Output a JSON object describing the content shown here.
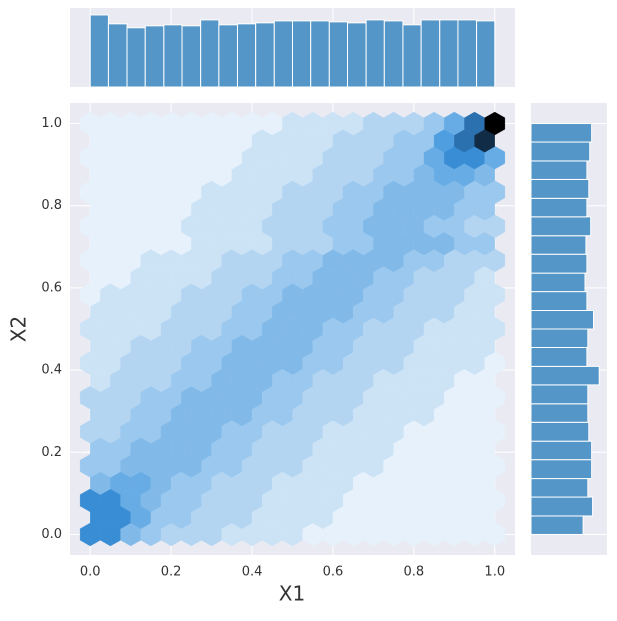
{
  "chart_data": [
    {
      "type": "hexbin",
      "x_label": "X1",
      "y_label": "X2",
      "xlim": [
        -0.05,
        1.05
      ],
      "ylim": [
        -0.05,
        1.05
      ],
      "xticks": [
        {
          "value": 0,
          "label": "0.0"
        },
        {
          "value": 0.2,
          "label": "0.2"
        },
        {
          "value": 0.4,
          "label": "0.4"
        },
        {
          "value": 0.6,
          "label": "0.6"
        },
        {
          "value": 0.8,
          "label": "0.8"
        },
        {
          "value": 1,
          "label": "1.0"
        }
      ],
      "yticks": [
        {
          "value": 0,
          "label": "0.0"
        },
        {
          "value": 0.2,
          "label": "0.2"
        },
        {
          "value": 0.4,
          "label": "0.4"
        },
        {
          "value": 0.6,
          "label": "0.6"
        },
        {
          "value": 0.8,
          "label": "0.8"
        },
        {
          "value": 1,
          "label": "1.0"
        }
      ],
      "grid": true,
      "color": "#3a93dd",
      "hex_dx": 0.05,
      "rows": [
        {
          "y": 0,
          "x_start": 0,
          "counts": [
            8,
            8,
            5,
            4,
            3,
            3,
            3,
            2,
            2,
            2,
            2,
            1,
            1,
            1,
            1,
            1,
            1,
            1,
            1,
            1,
            1
          ]
        },
        {
          "y": 0.042,
          "x_start": 0.025,
          "counts": [
            8,
            8,
            6,
            4,
            4,
            3,
            3,
            3,
            2,
            2,
            2,
            2,
            1,
            1,
            1,
            1,
            1,
            1,
            1,
            1
          ]
        },
        {
          "y": 0.083,
          "x_start": 0,
          "counts": [
            8,
            8,
            6,
            5,
            4,
            4,
            3,
            3,
            3,
            2,
            2,
            2,
            2,
            1,
            1,
            1,
            1,
            1,
            1,
            1,
            1
          ]
        },
        {
          "y": 0.125,
          "x_start": 0.025,
          "counts": [
            5,
            6,
            6,
            5,
            4,
            4,
            3,
            3,
            3,
            2,
            2,
            2,
            2,
            1,
            1,
            1,
            1,
            1,
            1,
            1
          ]
        },
        {
          "y": 0.167,
          "x_start": 0,
          "counts": [
            4,
            4,
            5,
            5,
            5,
            5,
            4,
            4,
            3,
            3,
            3,
            2,
            2,
            2,
            2,
            1,
            1,
            1,
            1,
            1,
            1
          ]
        },
        {
          "y": 0.208,
          "x_start": 0.025,
          "counts": [
            4,
            4,
            5,
            5,
            5,
            5,
            4,
            4,
            3,
            3,
            3,
            2,
            2,
            2,
            2,
            1,
            1,
            1,
            1,
            1
          ]
        },
        {
          "y": 0.25,
          "x_start": 0,
          "counts": [
            3,
            3,
            4,
            4,
            5,
            5,
            5,
            4,
            4,
            3,
            3,
            3,
            2,
            2,
            2,
            2,
            1,
            1,
            1,
            1,
            1
          ]
        },
        {
          "y": 0.292,
          "x_start": 0.025,
          "counts": [
            3,
            3,
            4,
            4,
            5,
            5,
            5,
            5,
            4,
            4,
            3,
            3,
            3,
            2,
            2,
            2,
            2,
            1,
            1,
            1
          ]
        },
        {
          "y": 0.333,
          "x_start": 0,
          "counts": [
            3,
            3,
            3,
            4,
            4,
            5,
            5,
            5,
            5,
            4,
            4,
            3,
            3,
            3,
            2,
            2,
            2,
            2,
            1,
            1,
            1
          ]
        },
        {
          "y": 0.375,
          "x_start": 0.025,
          "counts": [
            2,
            3,
            3,
            3,
            4,
            4,
            5,
            5,
            5,
            4,
            4,
            3,
            3,
            3,
            2,
            2,
            2,
            2,
            1,
            1
          ]
        },
        {
          "y": 0.417,
          "x_start": 0,
          "counts": [
            2,
            2,
            3,
            3,
            3,
            4,
            4,
            5,
            5,
            5,
            5,
            4,
            4,
            3,
            3,
            3,
            2,
            2,
            2,
            2,
            1
          ]
        },
        {
          "y": 0.458,
          "x_start": 0.025,
          "counts": [
            2,
            2,
            3,
            3,
            3,
            4,
            4,
            5,
            5,
            5,
            5,
            4,
            4,
            3,
            3,
            3,
            2,
            2,
            2,
            2
          ]
        },
        {
          "y": 0.5,
          "x_start": 0,
          "counts": [
            2,
            2,
            2,
            2,
            3,
            3,
            3,
            4,
            4,
            5,
            5,
            5,
            4,
            4,
            3,
            3,
            3,
            2,
            2,
            2,
            2
          ]
        },
        {
          "y": 0.542,
          "x_start": 0.025,
          "counts": [
            2,
            2,
            2,
            2,
            3,
            3,
            3,
            4,
            4,
            5,
            5,
            5,
            5,
            4,
            4,
            3,
            3,
            3,
            2,
            2
          ]
        },
        {
          "y": 0.583,
          "x_start": 0,
          "counts": [
            1,
            2,
            2,
            2,
            2,
            3,
            3,
            3,
            4,
            4,
            5,
            5,
            5,
            5,
            4,
            4,
            3,
            3,
            3,
            2,
            2
          ]
        },
        {
          "y": 0.625,
          "x_start": 0.025,
          "counts": [
            1,
            1,
            2,
            2,
            2,
            2,
            3,
            3,
            3,
            4,
            4,
            5,
            5,
            5,
            4,
            4,
            3,
            3,
            3,
            2
          ]
        },
        {
          "y": 0.667,
          "x_start": 0,
          "counts": [
            1,
            1,
            1,
            2,
            2,
            2,
            2,
            3,
            3,
            3,
            4,
            4,
            5,
            5,
            5,
            5,
            4,
            4,
            3,
            3,
            3
          ]
        },
        {
          "y": 0.708,
          "x_start": 0.025,
          "counts": [
            1,
            1,
            1,
            1,
            1,
            2,
            2,
            2,
            2,
            3,
            3,
            3,
            4,
            4,
            5,
            5,
            5,
            5,
            4,
            4
          ]
        },
        {
          "y": 0.75,
          "x_start": 0,
          "counts": [
            1,
            1,
            1,
            1,
            1,
            2,
            2,
            2,
            2,
            3,
            3,
            3,
            4,
            4,
            5,
            5,
            5,
            4,
            4,
            3,
            3
          ]
        },
        {
          "y": 0.792,
          "x_start": 0.025,
          "counts": [
            1,
            1,
            1,
            1,
            1,
            2,
            2,
            2,
            2,
            3,
            3,
            3,
            4,
            4,
            5,
            5,
            5,
            5,
            4,
            4
          ]
        },
        {
          "y": 0.833,
          "x_start": 0,
          "counts": [
            1,
            1,
            1,
            1,
            1,
            1,
            2,
            2,
            2,
            2,
            3,
            3,
            3,
            4,
            4,
            5,
            5,
            5,
            5,
            4,
            4
          ]
        },
        {
          "y": 0.875,
          "x_start": 0.025,
          "counts": [
            1,
            1,
            1,
            1,
            1,
            1,
            1,
            2,
            2,
            2,
            2,
            3,
            3,
            3,
            4,
            4,
            5,
            6,
            6,
            5
          ]
        },
        {
          "y": 0.917,
          "x_start": 0,
          "counts": [
            1,
            1,
            1,
            1,
            1,
            1,
            1,
            1,
            2,
            2,
            2,
            2,
            3,
            3,
            3,
            4,
            4,
            6,
            8,
            8,
            6
          ]
        },
        {
          "y": 0.958,
          "x_start": 0.025,
          "counts": [
            1,
            1,
            1,
            1,
            1,
            1,
            1,
            1,
            2,
            2,
            2,
            2,
            3,
            3,
            3,
            4,
            4,
            7,
            9,
            11
          ]
        },
        {
          "y": 1,
          "x_start": 0,
          "counts": [
            1,
            1,
            1,
            1,
            1,
            1,
            1,
            1,
            1,
            1,
            2,
            2,
            2,
            2,
            3,
            3,
            3,
            4,
            6,
            9,
            12
          ]
        }
      ]
    },
    {
      "type": "histogram",
      "orientation": "vertical",
      "color": "#5496c8",
      "ylim": [
        0,
        76
      ],
      "bins": [
        0,
        0.045,
        0.091,
        0.136,
        0.182,
        0.227,
        0.273,
        0.318,
        0.364,
        0.409,
        0.455,
        0.5,
        0.545,
        0.591,
        0.636,
        0.682,
        0.727,
        0.773,
        0.818,
        0.864,
        0.909,
        0.955,
        1
      ],
      "counts": [
        73,
        64,
        60,
        62,
        63,
        62,
        68,
        63,
        64,
        65,
        67,
        67,
        67,
        66,
        65,
        68,
        67,
        63,
        68,
        68,
        68,
        67
      ]
    },
    {
      "type": "histogram",
      "orientation": "horizontal",
      "color": "#5496c8",
      "xlim": [
        0,
        76
      ],
      "bins": [
        0,
        0.045,
        0.091,
        0.136,
        0.182,
        0.227,
        0.273,
        0.318,
        0.364,
        0.409,
        0.455,
        0.5,
        0.545,
        0.591,
        0.636,
        0.682,
        0.727,
        0.773,
        0.818,
        0.864,
        0.909,
        0.955,
        1
      ],
      "counts": [
        55,
        65,
        60,
        64,
        64,
        61,
        60,
        60,
        72,
        59,
        60,
        66,
        59,
        57,
        59,
        58,
        63,
        59,
        61,
        59,
        62,
        64
      ]
    }
  ]
}
